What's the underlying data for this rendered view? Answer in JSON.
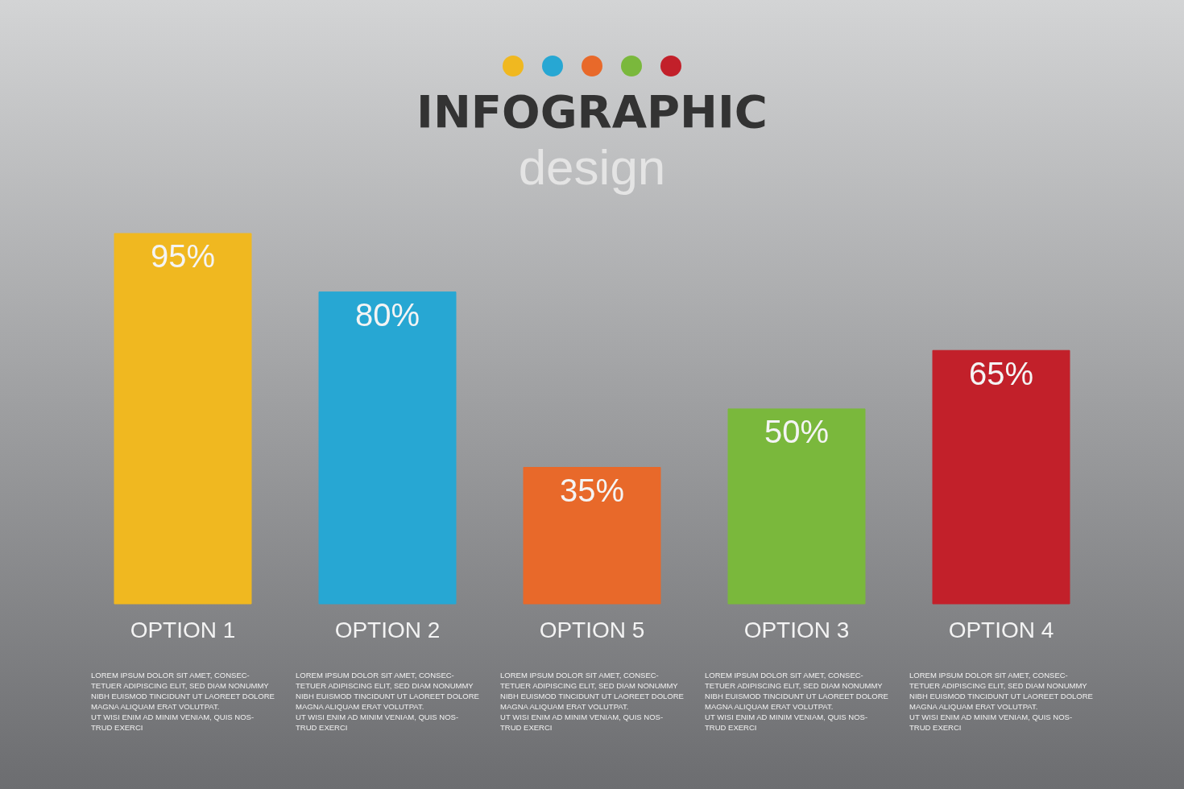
{
  "chart_data": {
    "type": "bar",
    "title": "INFOGRAPHIC",
    "subtitle": "design",
    "categories": [
      "OPTION 1",
      "OPTION 2",
      "OPTION 5",
      "OPTION 3",
      "OPTION 4"
    ],
    "values": [
      95,
      80,
      35,
      50,
      65
    ],
    "value_labels": [
      "95%",
      "80%",
      "35%",
      "50%",
      "65%"
    ],
    "colors": [
      "#f0b820",
      "#27a7d3",
      "#e8692a",
      "#7ab83c",
      "#c2202a"
    ],
    "annotations": [
      "LOREM IPSUM DOLOR SIT AMET, CONSEC-\nTETUER ADIPISCING ELIT, SED DIAM NONUMMY\nNIBH EUISMOD TINCIDUNT UT LAOREET DOLORE\nMAGNA ALIQUAM ERAT VOLUTPAT.\nUT WISI ENIM AD MINIM VENIAM, QUIS NOS-\nTRUD EXERCI",
      "LOREM IPSUM DOLOR SIT AMET, CONSEC-\nTETUER ADIPISCING ELIT, SED DIAM NONUMMY\nNIBH EUISMOD TINCIDUNT UT LAOREET DOLORE\nMAGNA ALIQUAM ERAT VOLUTPAT.\nUT WISI ENIM AD MINIM VENIAM, QUIS NOS-\nTRUD EXERCI",
      "LOREM IPSUM DOLOR SIT AMET, CONSEC-\nTETUER ADIPISCING ELIT, SED DIAM NONUMMY\nNIBH EUISMOD TINCIDUNT UT LAOREET DOLORE\nMAGNA ALIQUAM ERAT VOLUTPAT.\nUT WISI ENIM AD MINIM VENIAM, QUIS NOS-\nTRUD EXERCI",
      "LOREM IPSUM DOLOR SIT AMET, CONSEC-\nTETUER ADIPISCING ELIT, SED DIAM NONUMMY\nNIBH EUISMOD TINCIDUNT UT LAOREET DOLORE\nMAGNA ALIQUAM ERAT VOLUTPAT.\nUT WISI ENIM AD MINIM VENIAM, QUIS NOS-\nTRUD EXERCI",
      "LOREM IPSUM DOLOR SIT AMET, CONSEC-\nTETUER ADIPISCING ELIT, SED DIAM NONUMMY\nNIBH EUISMOD TINCIDUNT UT LAOREET DOLORE\nMAGNA ALIQUAM ERAT VOLUTPAT.\nUT WISI ENIM AD MINIM VENIAM, QUIS NOS-\nTRUD EXERCI"
    ]
  }
}
